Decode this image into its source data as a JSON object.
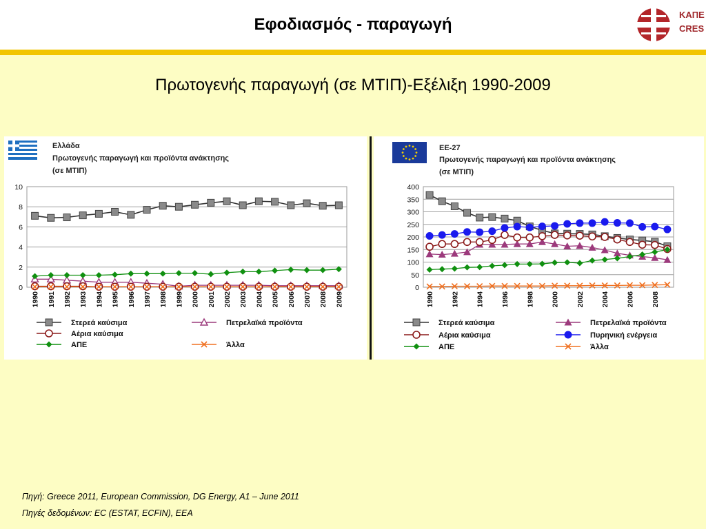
{
  "header": {
    "title": "Εφοδιασμός - παραγωγή",
    "logo_lines": [
      "ΚΑΠΕ",
      "CRES"
    ]
  },
  "subtitle": "Πρωτογενής παραγωγή (σε ΜΤΙΠ)-Εξέλιξη 1990-2009",
  "colors": {
    "header_bar": "#f2c500",
    "background": "#fdfdc4",
    "solid": "#7f7f7f",
    "gas": "#8b1a1a",
    "oil": "#9c3a7c",
    "nuclear": "#1a1aee",
    "renewables": "#109010",
    "other": "#f07020"
  },
  "chart_data": [
    {
      "type": "line",
      "region": "Ελλάδα",
      "title_lines": [
        "Πρωτογενής παραγωγή και προϊόντα ανάκτησης",
        "(σε ΜΤΙΠ)"
      ],
      "x": [
        "1990",
        "1991",
        "1992",
        "1993",
        "1994",
        "1995",
        "1996",
        "1997",
        "1998",
        "1999",
        "2000",
        "2001",
        "2002",
        "2003",
        "2004",
        "2005",
        "2006",
        "2007",
        "2008",
        "2009"
      ],
      "ylim": [
        0,
        10
      ],
      "yticks": [
        0,
        2,
        4,
        6,
        8,
        10
      ],
      "grid": true,
      "legend_position": "bottom",
      "series": [
        {
          "name": "Στερεά καύσιμα",
          "key": "solid",
          "marker": "square",
          "values": [
            7.1,
            6.9,
            6.95,
            7.15,
            7.3,
            7.5,
            7.2,
            7.7,
            8.1,
            8.0,
            8.2,
            8.4,
            8.55,
            8.15,
            8.55,
            8.5,
            8.15,
            8.35,
            8.1,
            8.15
          ]
        },
        {
          "name": "Πετρελαϊκά προϊόντα",
          "key": "oil",
          "marker": "triangle-open",
          "values": [
            0.8,
            0.8,
            0.7,
            0.6,
            0.5,
            0.5,
            0.5,
            0.4,
            0.3,
            0.1,
            0.2,
            0.2,
            0.2,
            0.2,
            0.2,
            0.15,
            0.15,
            0.15,
            0.15,
            0.15
          ]
        },
        {
          "name": "Αέρια καύσιμα",
          "key": "gas",
          "marker": "circle-open",
          "values": [
            0.1,
            0.1,
            0.1,
            0.1,
            0.05,
            0.05,
            0.05,
            0.05,
            0.05,
            0.05,
            0.05,
            0.05,
            0.05,
            0.05,
            0.05,
            0.05,
            0.05,
            0.05,
            0.05,
            0.05
          ]
        },
        {
          "name": "Άλλα",
          "key": "other",
          "marker": "x",
          "values": [
            0.05,
            0.05,
            0.05,
            0.05,
            0.05,
            0.05,
            0.05,
            0.05,
            0.05,
            0.05,
            0.05,
            0.05,
            0.05,
            0.05,
            0.05,
            0.05,
            0.05,
            0.05,
            0.05,
            0.05
          ]
        },
        {
          "name": "ΑΠΕ",
          "key": "renewables",
          "marker": "diamond",
          "values": [
            1.1,
            1.2,
            1.2,
            1.2,
            1.2,
            1.25,
            1.35,
            1.35,
            1.35,
            1.4,
            1.4,
            1.3,
            1.45,
            1.55,
            1.55,
            1.65,
            1.75,
            1.7,
            1.7,
            1.8
          ]
        }
      ]
    },
    {
      "type": "line",
      "region": "ΕΕ-27",
      "title_lines": [
        "Πρωτογενής παραγωγή και προϊόντα ανάκτησης",
        "(σε ΜΤΙΠ)"
      ],
      "x": [
        "1990",
        "1991",
        "1992",
        "1993",
        "1994",
        "1995",
        "1996",
        "1997",
        "1998",
        "1999",
        "2000",
        "2001",
        "2002",
        "2003",
        "2004",
        "2005",
        "2006",
        "2007",
        "2008",
        "2009"
      ],
      "ylim": [
        0,
        400
      ],
      "yticks": [
        0,
        50,
        100,
        150,
        200,
        250,
        300,
        350,
        400
      ],
      "grid": true,
      "legend_position": "bottom",
      "series": [
        {
          "name": "Στερεά καύσιμα",
          "key": "solid",
          "marker": "square",
          "values": [
            367,
            342,
            322,
            296,
            277,
            279,
            273,
            265,
            242,
            226,
            214,
            213,
            212,
            210,
            203,
            196,
            190,
            186,
            181,
            163
          ]
        },
        {
          "name": "Πετρελαϊκά προϊόντα",
          "key": "oil",
          "marker": "triangle",
          "values": [
            132,
            130,
            134,
            140,
            170,
            170,
            170,
            172,
            172,
            180,
            172,
            163,
            165,
            158,
            148,
            135,
            127,
            122,
            117,
            109
          ]
        },
        {
          "name": "Αέρια καύσιμα",
          "key": "gas",
          "marker": "circle-open",
          "values": [
            161,
            172,
            172,
            180,
            180,
            188,
            208,
            198,
            198,
            203,
            208,
            206,
            205,
            202,
            200,
            190,
            180,
            169,
            168,
            152
          ]
        },
        {
          "name": "Πυρηνική ενέργεια",
          "key": "nuclear",
          "marker": "circle",
          "values": [
            204,
            208,
            212,
            220,
            219,
            223,
            236,
            241,
            238,
            242,
            244,
            252,
            255,
            255,
            260,
            256,
            255,
            240,
            241,
            230
          ]
        },
        {
          "name": "ΑΠΕ",
          "key": "renewables",
          "marker": "diamond",
          "values": [
            70,
            72,
            74,
            79,
            80,
            85,
            88,
            92,
            92,
            93,
            98,
            99,
            96,
            106,
            110,
            115,
            122,
            130,
            140,
            150
          ]
        },
        {
          "name": "Άλλα",
          "key": "other",
          "marker": "x",
          "values": [
            3,
            3,
            4,
            4,
            4,
            5,
            5,
            5,
            5,
            5,
            6,
            6,
            6,
            7,
            7,
            7,
            8,
            8,
            9,
            10
          ]
        }
      ]
    }
  ],
  "sources": {
    "line1": "Πηγή: Greece 2011, European Commission, DG Energy, A1 – June 2011",
    "line2": "Πηγές δεδομένων: EC (ESTAT, ECFIN), EEA"
  }
}
